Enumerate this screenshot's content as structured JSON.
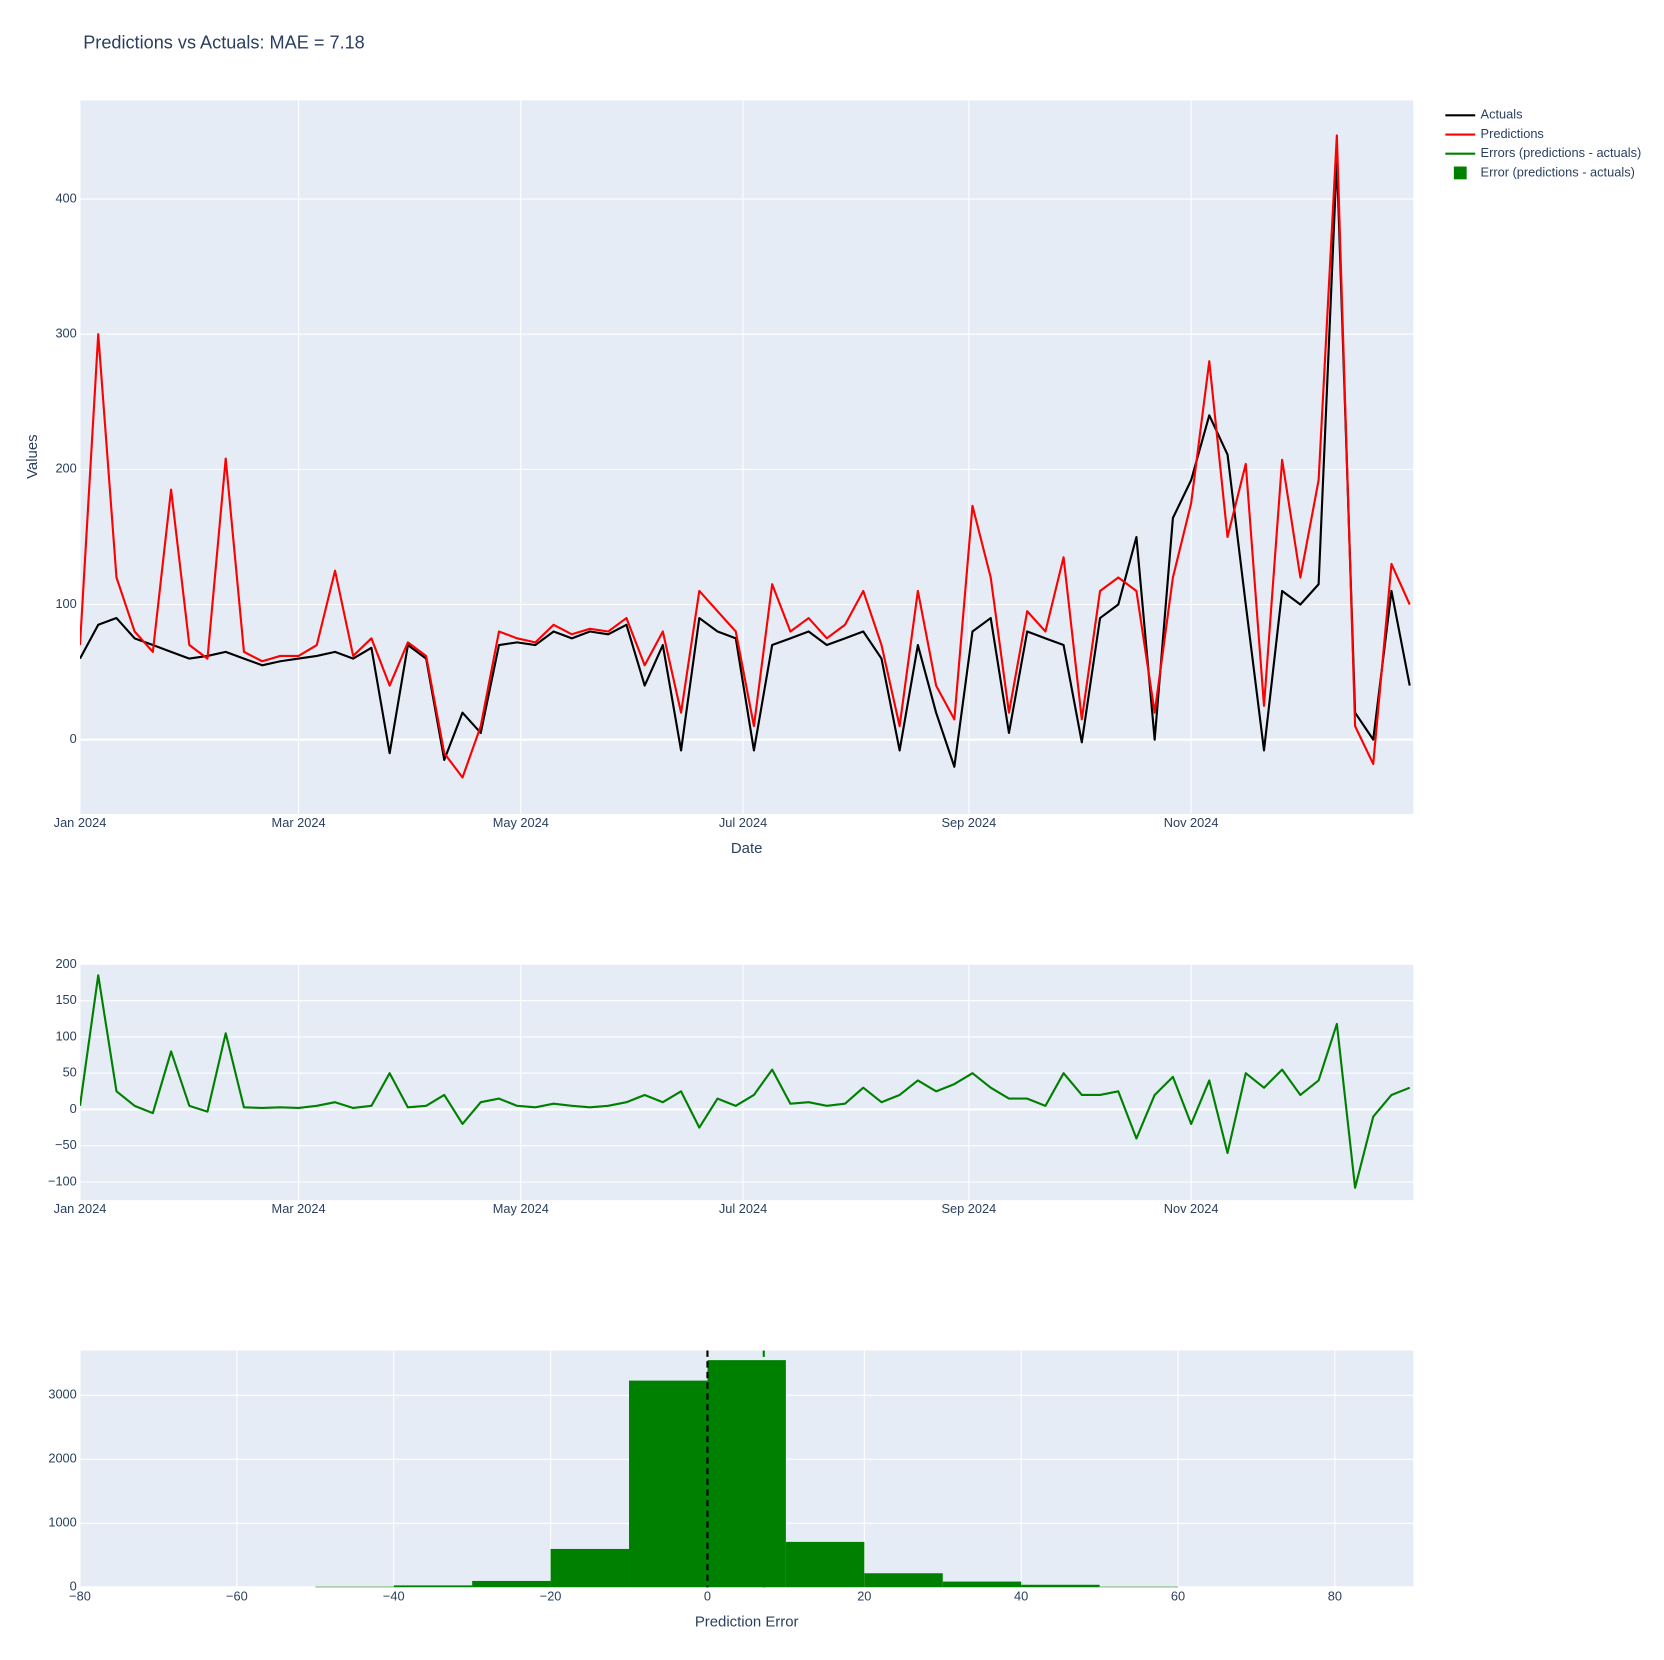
{
  "chart_data": [
    {
      "type": "line",
      "title": "Predictions vs Actuals: MAE = 7.18",
      "xlabel": "Date",
      "ylabel": "Values",
      "x": [
        "2024-01-01",
        "2024-01-06",
        "2024-01-11",
        "2024-01-16",
        "2024-01-21",
        "2024-01-26",
        "2024-01-31",
        "2024-02-05",
        "2024-02-10",
        "2024-02-15",
        "2024-02-20",
        "2024-02-25",
        "2024-03-01",
        "2024-03-06",
        "2024-03-11",
        "2024-03-16",
        "2024-03-21",
        "2024-03-26",
        "2024-03-31",
        "2024-04-05",
        "2024-04-10",
        "2024-04-15",
        "2024-04-20",
        "2024-04-25",
        "2024-04-30",
        "2024-05-05",
        "2024-05-10",
        "2024-05-15",
        "2024-05-20",
        "2024-05-25",
        "2024-05-30",
        "2024-06-04",
        "2024-06-09",
        "2024-06-14",
        "2024-06-19",
        "2024-06-24",
        "2024-06-29",
        "2024-07-04",
        "2024-07-09",
        "2024-07-14",
        "2024-07-19",
        "2024-07-24",
        "2024-07-29",
        "2024-08-03",
        "2024-08-08",
        "2024-08-13",
        "2024-08-18",
        "2024-08-23",
        "2024-08-28",
        "2024-09-02",
        "2024-09-07",
        "2024-09-12",
        "2024-09-17",
        "2024-09-22",
        "2024-09-27",
        "2024-10-02",
        "2024-10-07",
        "2024-10-12",
        "2024-10-17",
        "2024-10-22",
        "2024-10-27",
        "2024-11-01",
        "2024-11-06",
        "2024-11-11",
        "2024-11-16",
        "2024-11-21",
        "2024-11-26",
        "2024-12-01",
        "2024-12-06",
        "2024-12-11",
        "2024-12-16",
        "2024-12-21",
        "2024-12-26",
        "2024-12-31"
      ],
      "series": [
        {
          "name": "Actuals",
          "color": "#000000",
          "values": [
            60,
            85,
            90,
            75,
            70,
            65,
            60,
            62,
            65,
            60,
            55,
            58,
            60,
            62,
            65,
            60,
            68,
            -10,
            70,
            60,
            -15,
            20,
            5,
            70,
            72,
            70,
            80,
            75,
            80,
            78,
            85,
            40,
            70,
            -8,
            90,
            80,
            75,
            -8,
            70,
            75,
            80,
            70,
            75,
            80,
            60,
            -8,
            70,
            20,
            -20,
            80,
            90,
            5,
            80,
            75,
            70,
            -2,
            90,
            100,
            150,
            0,
            164,
            192,
            240,
            211,
            100,
            -8,
            110,
            100,
            115,
            430,
            20,
            0,
            110,
            40
          ]
        },
        {
          "name": "Predictions",
          "color": "#ff0000",
          "values": [
            70,
            300,
            120,
            80,
            65,
            185,
            70,
            60,
            208,
            65,
            58,
            62,
            62,
            70,
            125,
            62,
            75,
            40,
            72,
            62,
            -10,
            -28,
            10,
            80,
            75,
            72,
            85,
            78,
            82,
            80,
            90,
            55,
            80,
            20,
            110,
            95,
            80,
            10,
            115,
            80,
            90,
            75,
            85,
            110,
            70,
            10,
            110,
            40,
            15,
            173,
            120,
            20,
            95,
            80,
            135,
            15,
            110,
            120,
            110,
            20,
            120,
            175,
            280,
            150,
            204,
            25,
            207,
            120,
            192,
            447,
            10,
            -18,
            130,
            100
          ]
        }
      ],
      "xlim": [
        "2024-01-01",
        "2025-01-01"
      ],
      "xticks": [
        {
          "value": "2024-01-01",
          "label": "Jan 2024"
        },
        {
          "value": "2024-03-01",
          "label": "Mar 2024"
        },
        {
          "value": "2024-05-01",
          "label": "May 2024"
        },
        {
          "value": "2024-07-01",
          "label": "Jul 2024"
        },
        {
          "value": "2024-09-01",
          "label": "Sep 2024"
        },
        {
          "value": "2024-11-01",
          "label": "Nov 2024"
        }
      ],
      "ylim": [
        -55,
        473
      ],
      "yticks": [
        0,
        100,
        200,
        300,
        400
      ],
      "grid": true
    },
    {
      "type": "line",
      "x": [
        "2024-01-01",
        "2024-01-06",
        "2024-01-11",
        "2024-01-16",
        "2024-01-21",
        "2024-01-26",
        "2024-01-31",
        "2024-02-05",
        "2024-02-10",
        "2024-02-15",
        "2024-02-20",
        "2024-02-25",
        "2024-03-01",
        "2024-03-06",
        "2024-03-11",
        "2024-03-16",
        "2024-03-21",
        "2024-03-26",
        "2024-03-31",
        "2024-04-05",
        "2024-04-10",
        "2024-04-15",
        "2024-04-20",
        "2024-04-25",
        "2024-04-30",
        "2024-05-05",
        "2024-05-10",
        "2024-05-15",
        "2024-05-20",
        "2024-05-25",
        "2024-05-30",
        "2024-06-04",
        "2024-06-09",
        "2024-06-14",
        "2024-06-19",
        "2024-06-24",
        "2024-06-29",
        "2024-07-04",
        "2024-07-09",
        "2024-07-14",
        "2024-07-19",
        "2024-07-24",
        "2024-07-29",
        "2024-08-03",
        "2024-08-08",
        "2024-08-13",
        "2024-08-18",
        "2024-08-23",
        "2024-08-28",
        "2024-09-02",
        "2024-09-07",
        "2024-09-12",
        "2024-09-17",
        "2024-09-22",
        "2024-09-27",
        "2024-10-02",
        "2024-10-07",
        "2024-10-12",
        "2024-10-17",
        "2024-10-22",
        "2024-10-27",
        "2024-11-01",
        "2024-11-06",
        "2024-11-11",
        "2024-11-16",
        "2024-11-21",
        "2024-11-26",
        "2024-12-01",
        "2024-12-06",
        "2024-12-11",
        "2024-12-16",
        "2024-12-21",
        "2024-12-26",
        "2024-12-31"
      ],
      "series": [
        {
          "name": "Errors (predictions - actuals)",
          "color": "#008000",
          "values": [
            5,
            185,
            25,
            5,
            -5,
            80,
            5,
            -3,
            105,
            3,
            2,
            3,
            2,
            5,
            10,
            2,
            5,
            50,
            3,
            5,
            20,
            -20,
            10,
            15,
            5,
            3,
            8,
            5,
            3,
            5,
            10,
            20,
            10,
            25,
            -25,
            15,
            5,
            20,
            55,
            8,
            10,
            5,
            8,
            30,
            10,
            20,
            40,
            25,
            35,
            50,
            30,
            15,
            15,
            5,
            50,
            20,
            20,
            25,
            -40,
            20,
            45,
            -20,
            40,
            -60,
            50,
            30,
            55,
            20,
            40,
            118,
            -108,
            -10,
            20,
            30
          ]
        }
      ],
      "xlim": [
        "2024-01-01",
        "2025-01-01"
      ],
      "xticks": [
        {
          "value": "2024-01-01",
          "label": "Jan 2024"
        },
        {
          "value": "2024-03-01",
          "label": "Mar 2024"
        },
        {
          "value": "2024-05-01",
          "label": "May 2024"
        },
        {
          "value": "2024-07-01",
          "label": "Jul 2024"
        },
        {
          "value": "2024-09-01",
          "label": "Sep 2024"
        },
        {
          "value": "2024-11-01",
          "label": "Nov 2024"
        }
      ],
      "ylim": [
        -125,
        200
      ],
      "yticks": [
        {
          "value": -100,
          "label": "−100"
        },
        {
          "value": -50,
          "label": "−50"
        },
        0,
        50,
        100,
        150,
        200
      ],
      "grid": true
    },
    {
      "type": "histogram",
      "xlabel": "Prediction Error",
      "bins": [
        -50,
        -40,
        -30,
        -20,
        -10,
        0,
        10,
        20,
        30,
        40,
        50,
        60
      ],
      "series": [
        {
          "name": "Error (predictions - actuals)",
          "color": "#008000",
          "values": [
            10,
            30,
            100,
            600,
            3230,
            3550,
            710,
            220,
            90,
            40,
            10
          ]
        }
      ],
      "vlines": [
        {
          "value": 0,
          "color": "#000000"
        },
        {
          "value": 7.18,
          "color": "#008000"
        }
      ],
      "xlim": [
        -80,
        90
      ],
      "xticks": [
        {
          "value": -80,
          "label": "−80"
        },
        {
          "value": -60,
          "label": "−60"
        },
        {
          "value": -40,
          "label": "−40"
        },
        {
          "value": -20,
          "label": "−20"
        },
        0,
        20,
        40,
        60,
        80
      ],
      "ylim": [
        0,
        3700
      ],
      "yticks": [
        0,
        1000,
        2000,
        3000
      ],
      "grid": true
    }
  ]
}
